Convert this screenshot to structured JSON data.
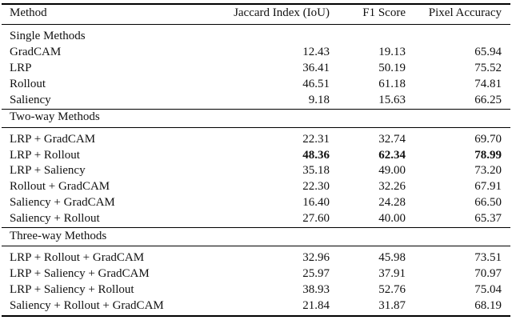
{
  "header": [
    "Method",
    "Jaccard Index (IoU)",
    "F1 Score",
    "Pixel Accuracy"
  ],
  "sections": [
    {
      "title": "Single Methods",
      "rows": [
        {
          "method": "GradCAM",
          "iou": "12.43",
          "f1": "19.13",
          "acc": "65.94"
        },
        {
          "method": "LRP",
          "iou": "36.41",
          "f1": "50.19",
          "acc": "75.52"
        },
        {
          "method": "Rollout",
          "iou": "46.51",
          "f1": "61.18",
          "acc": "74.81"
        },
        {
          "method": "Saliency",
          "iou": "9.18",
          "f1": "15.63",
          "acc": "66.25"
        }
      ]
    },
    {
      "title": "Two-way Methods",
      "rows": [
        {
          "method": "LRP + GradCAM",
          "iou": "22.31",
          "f1": "32.74",
          "acc": "69.70"
        },
        {
          "method": "LRP + Rollout",
          "iou": "48.36",
          "f1": "62.34",
          "acc": "78.99",
          "bold": true
        },
        {
          "method": "LRP + Saliency",
          "iou": "35.18",
          "f1": "49.00",
          "acc": "73.20"
        },
        {
          "method": "Rollout + GradCAM",
          "iou": "22.30",
          "f1": "32.26",
          "acc": "67.91"
        },
        {
          "method": "Saliency + GradCAM",
          "iou": "16.40",
          "f1": "24.28",
          "acc": "66.50"
        },
        {
          "method": "Saliency + Rollout",
          "iou": "27.60",
          "f1": "40.00",
          "acc": "65.37"
        }
      ]
    },
    {
      "title": "Three-way Methods",
      "rows": [
        {
          "method": "LRP + Rollout + GradCAM",
          "iou": "32.96",
          "f1": "45.98",
          "acc": "73.51"
        },
        {
          "method": "LRP + Saliency + GradCAM",
          "iou": "25.97",
          "f1": "37.91",
          "acc": "70.97"
        },
        {
          "method": "LRP + Saliency + Rollout",
          "iou": "38.93",
          "f1": "52.76",
          "acc": "75.04"
        },
        {
          "method": "Saliency + Rollout + GradCAM",
          "iou": "21.84",
          "f1": "31.87",
          "acc": "68.19"
        }
      ]
    }
  ]
}
